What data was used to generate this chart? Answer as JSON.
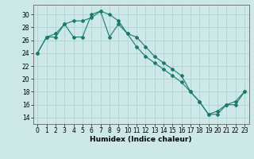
{
  "xlabel": "Humidex (Indice chaleur)",
  "xlim": [
    -0.5,
    23.5
  ],
  "ylim": [
    13,
    31.5
  ],
  "yticks": [
    14,
    16,
    18,
    20,
    22,
    24,
    26,
    28,
    30
  ],
  "xticks": [
    0,
    1,
    2,
    3,
    4,
    5,
    6,
    7,
    8,
    9,
    10,
    11,
    12,
    13,
    14,
    15,
    16,
    17,
    18,
    19,
    20,
    21,
    22,
    23
  ],
  "line_color": "#1a7a6e",
  "bg_color": "#cce8e8",
  "grid_color": "#aacece",
  "series1_x": [
    0,
    1,
    2,
    3,
    4,
    5,
    6,
    7,
    8,
    9,
    10,
    11,
    12,
    13,
    14,
    15,
    16,
    17,
    18,
    19,
    20,
    21,
    22,
    23
  ],
  "series1_y": [
    24.0,
    26.5,
    27.0,
    28.5,
    26.5,
    26.5,
    30.0,
    30.5,
    26.5,
    28.5,
    27.0,
    26.5,
    25.0,
    23.5,
    22.5,
    21.5,
    20.5,
    18.0,
    16.5,
    14.5,
    15.0,
    16.0,
    16.5,
    18.0
  ],
  "series2_x": [
    0,
    1,
    2,
    3,
    4,
    5,
    6,
    7,
    8,
    9,
    10,
    11,
    12,
    13,
    14,
    15,
    16,
    17,
    18,
    19,
    20,
    21,
    22,
    23
  ],
  "series2_y": [
    24.0,
    26.5,
    26.5,
    28.5,
    29.0,
    29.0,
    29.5,
    30.5,
    30.0,
    29.0,
    27.0,
    25.0,
    23.5,
    22.5,
    21.5,
    20.5,
    19.5,
    18.0,
    16.5,
    14.5,
    14.5,
    16.0,
    16.0,
    18.0
  ],
  "tick_fontsize": 5.5,
  "xlabel_fontsize": 6.5,
  "marker_size": 2.0,
  "line_width": 0.8
}
